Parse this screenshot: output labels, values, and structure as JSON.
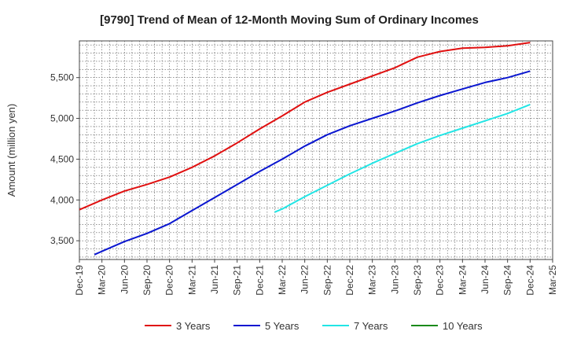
{
  "chart_data": {
    "type": "line",
    "title": "[9790]  Trend of Mean of 12-Month Moving Sum of Ordinary Incomes",
    "xlabel": "",
    "ylabel": "Amount (million yen)",
    "x_tick_labels": [
      "Dec-19",
      "Mar-20",
      "Jun-20",
      "Sep-20",
      "Dec-20",
      "Mar-21",
      "Jun-21",
      "Sep-21",
      "Dec-21",
      "Mar-22",
      "Jun-22",
      "Sep-22",
      "Dec-22",
      "Mar-23",
      "Jun-23",
      "Sep-23",
      "Dec-23",
      "Mar-24",
      "Jun-24",
      "Sep-24",
      "Dec-24",
      "Mar-25"
    ],
    "y_ticks": [
      3500,
      4000,
      4500,
      5000,
      5500
    ],
    "y_tick_labels": [
      "3,500",
      "4,000",
      "4,500",
      "5,000",
      "5,500"
    ],
    "ylim": [
      3270,
      5950
    ],
    "grid": true,
    "legend_position": "bottom",
    "series": [
      {
        "name": "3 Years",
        "color": "#e01010",
        "points": [
          [
            "Dec-19",
            3880
          ],
          [
            "Mar-20",
            4000
          ],
          [
            "Jun-20",
            4110
          ],
          [
            "Sep-20",
            4190
          ],
          [
            "Dec-20",
            4280
          ],
          [
            "Mar-21",
            4400
          ],
          [
            "Jun-21",
            4540
          ],
          [
            "Sep-21",
            4700
          ],
          [
            "Dec-21",
            4870
          ],
          [
            "Mar-22",
            5030
          ],
          [
            "Jun-22",
            5200
          ],
          [
            "Sep-22",
            5320
          ],
          [
            "Dec-22",
            5420
          ],
          [
            "Mar-23",
            5520
          ],
          [
            "Jun-23",
            5620
          ],
          [
            "Sep-23",
            5750
          ],
          [
            "Dec-23",
            5820
          ],
          [
            "Mar-24",
            5860
          ],
          [
            "Jun-24",
            5870
          ],
          [
            "Sep-24",
            5890
          ],
          [
            "Dec-24",
            5930
          ]
        ]
      },
      {
        "name": "5 Years",
        "color": "#0a16d0",
        "points": [
          [
            "Feb-20",
            3330
          ],
          [
            "Mar-20",
            3370
          ],
          [
            "Jun-20",
            3490
          ],
          [
            "Sep-20",
            3590
          ],
          [
            "Dec-20",
            3710
          ],
          [
            "Mar-21",
            3870
          ],
          [
            "Jun-21",
            4030
          ],
          [
            "Sep-21",
            4190
          ],
          [
            "Dec-21",
            4350
          ],
          [
            "Mar-22",
            4500
          ],
          [
            "Jun-22",
            4660
          ],
          [
            "Sep-22",
            4800
          ],
          [
            "Dec-22",
            4910
          ],
          [
            "Mar-23",
            5000
          ],
          [
            "Jun-23",
            5090
          ],
          [
            "Sep-23",
            5190
          ],
          [
            "Dec-23",
            5280
          ],
          [
            "Mar-24",
            5360
          ],
          [
            "Jun-24",
            5440
          ],
          [
            "Sep-24",
            5500
          ],
          [
            "Dec-24",
            5580
          ]
        ]
      },
      {
        "name": "7 Years",
        "color": "#22e5e5",
        "points": [
          [
            "Feb-22",
            3850
          ],
          [
            "Mar-22",
            3890
          ],
          [
            "Jun-22",
            4040
          ],
          [
            "Sep-22",
            4180
          ],
          [
            "Dec-22",
            4320
          ],
          [
            "Mar-23",
            4450
          ],
          [
            "Jun-23",
            4570
          ],
          [
            "Sep-23",
            4690
          ],
          [
            "Dec-23",
            4790
          ],
          [
            "Mar-24",
            4880
          ],
          [
            "Jun-24",
            4970
          ],
          [
            "Sep-24",
            5060
          ],
          [
            "Dec-24",
            5170
          ]
        ]
      },
      {
        "name": "10 Years",
        "color": "#1a8a1a",
        "points": []
      }
    ]
  }
}
